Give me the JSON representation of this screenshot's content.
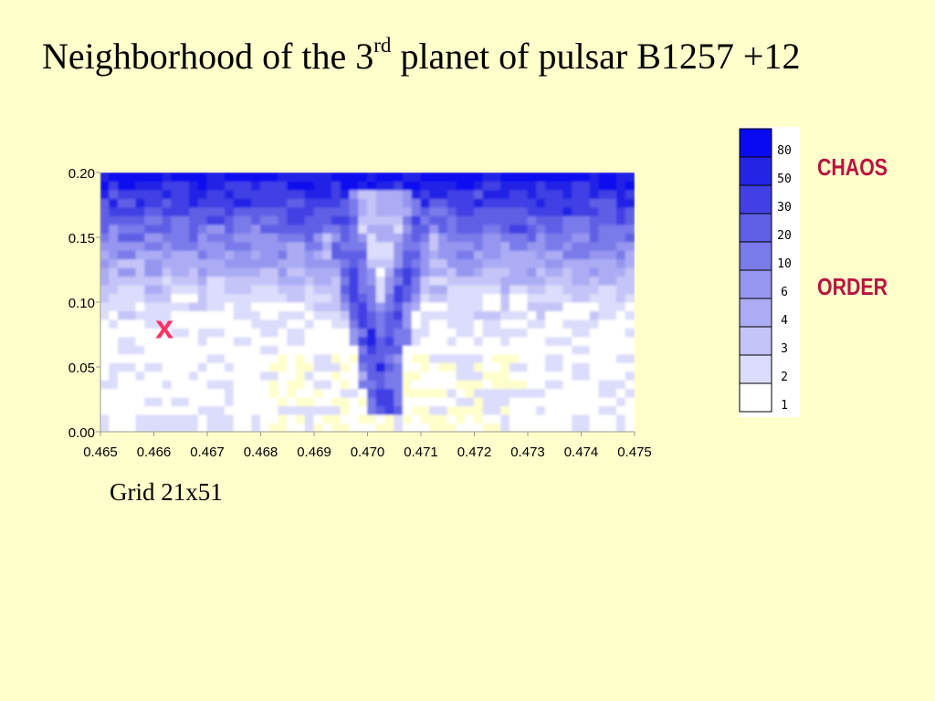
{
  "title": {
    "prefix": "Neighborhood of the 3",
    "sup": "rd",
    "suffix": " planet of pulsar B1257 +12"
  },
  "caption": "Grid 21x51",
  "side_labels": {
    "chaos": "CHAOS",
    "order": "ORDER"
  },
  "marker": {
    "text": "x",
    "x": 0.4662,
    "y": 0.08,
    "color": "#ff3366"
  },
  "colors": {
    "background": "#ffffcc",
    "levels": [
      "#ffffff",
      "#dcdcfc",
      "#c4c4f8",
      "#acacf4",
      "#9696f0",
      "#7a7aea",
      "#5e5ee6",
      "#4040e4",
      "#2424e6",
      "#0a0af0"
    ],
    "yellow_patch": "#ffffcc"
  },
  "chart_data": {
    "type": "heatmap",
    "xlim": [
      0.465,
      0.475
    ],
    "ylim": [
      0.0,
      0.2
    ],
    "x_ticks": [
      "0.465",
      "0.466",
      "0.467",
      "0.468",
      "0.469",
      "0.470",
      "0.471",
      "0.472",
      "0.473",
      "0.474",
      "0.475"
    ],
    "y_ticks": [
      "0.00",
      "0.05",
      "0.10",
      "0.15",
      "0.20"
    ],
    "grid": "21x51",
    "colorbar": {
      "levels": [
        "1",
        "2",
        "3",
        "4",
        "6",
        "10",
        "20",
        "30",
        "50",
        "80"
      ],
      "high_label": "CHAOS",
      "low_label": "ORDER"
    }
  }
}
